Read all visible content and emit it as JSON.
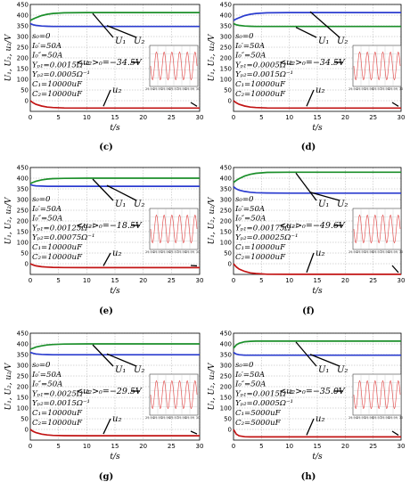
{
  "x_axis_label": "t/s",
  "y_axis_label": "U₁, U₂, u₂/V",
  "x_ticks": [
    "0",
    "5",
    "10",
    "15",
    "20",
    "25",
    "30"
  ],
  "y_ticks": [
    "0",
    "50",
    "100",
    "150",
    "200",
    "250",
    "300",
    "350",
    "400",
    "450"
  ],
  "u1_label": "U₁",
  "u2_label": "U₂",
  "u2_small_label": "u₂",
  "colors": {
    "u1": "#1b8f2a",
    "u2": "#2b3ccf",
    "u2_inst": "#c21414",
    "inset_wave": "#e04040"
  },
  "inset_ticks": [
    "29.94",
    "29.95",
    "29.96",
    "29.97",
    "29.98",
    "29.99",
    "30"
  ],
  "chart_data": [
    {
      "type": "line",
      "caption": "(c)",
      "params": [
        "s₀=0",
        "I₀′=50A",
        "I₀″=50A",
        "Yₚ₁=0.0015Ω⁻¹",
        "Yₚ₂=0.0005Ω⁻¹",
        "C₁=10000uF",
        "C₂=10000uF"
      ],
      "annotation": "<u₂>₀=−34.5V",
      "xlim": [
        0,
        30
      ],
      "ylim": [
        -50,
        450
      ],
      "series": [
        {
          "name": "U₁",
          "x": [
            0,
            0.5,
            1,
            2,
            3,
            4,
            6,
            10,
            15,
            20,
            25,
            30
          ],
          "y": [
            375,
            382,
            388,
            398,
            404,
            408,
            411,
            412,
            412,
            412,
            412,
            412
          ]
        },
        {
          "name": "U₂",
          "x": [
            0,
            0.5,
            1,
            2,
            3,
            4,
            6,
            10,
            15,
            20,
            25,
            30
          ],
          "y": [
            360,
            355,
            352,
            349,
            348,
            347,
            347,
            347,
            347,
            347,
            347,
            347
          ]
        },
        {
          "name": "u₂",
          "x": [
            0,
            0.5,
            1,
            2,
            3,
            4,
            6,
            10,
            15,
            20,
            25,
            30
          ],
          "y": [
            0,
            -10,
            -17,
            -25,
            -30,
            -32,
            -34,
            -34.5,
            -34.5,
            -34.5,
            -34.5,
            -34.5
          ]
        }
      ]
    },
    {
      "type": "line",
      "caption": "(d)",
      "params": [
        "s₀=0",
        "I₀′=50A",
        "I₀″=50A",
        "Yₚ₁=0.0005Ω⁻¹",
        "Yₚ₂=0.0015Ω⁻¹",
        "C₁=10000uF",
        "C₂=10000uF"
      ],
      "annotation": "<u₂>₀=−34.5V",
      "xlim": [
        0,
        30
      ],
      "ylim": [
        -50,
        450
      ],
      "series": [
        {
          "name": "U₁",
          "x": [
            0,
            0.5,
            1,
            2,
            3,
            4,
            6,
            10,
            15,
            20,
            25,
            30
          ],
          "y": [
            360,
            355,
            352,
            349,
            348,
            347,
            347,
            347,
            347,
            347,
            347,
            347
          ]
        },
        {
          "name": "U₂",
          "x": [
            0,
            0.5,
            1,
            2,
            3,
            4,
            6,
            10,
            15,
            20,
            25,
            30
          ],
          "y": [
            375,
            382,
            388,
            398,
            404,
            408,
            411,
            412,
            412,
            412,
            412,
            412
          ]
        },
        {
          "name": "u₂",
          "x": [
            0,
            0.5,
            1,
            2,
            3,
            4,
            6,
            10,
            15,
            20,
            25,
            30
          ],
          "y": [
            0,
            -10,
            -17,
            -25,
            -30,
            -32,
            -34,
            -34.5,
            -34.5,
            -34.5,
            -34.5,
            -34.5
          ]
        }
      ]
    },
    {
      "type": "line",
      "caption": "(e)",
      "params": [
        "s₀=0",
        "I₀′=50A",
        "I₀″=50A",
        "Yₚ₁=0.00125Ω⁻¹",
        "Yₚ₂=0.00075Ω⁻¹",
        "C₁=10000uF",
        "C₂=10000uF"
      ],
      "annotation": "<u₂>₀=−18.5V",
      "xlim": [
        0,
        30
      ],
      "ylim": [
        -50,
        450
      ],
      "series": [
        {
          "name": "U₁",
          "x": [
            0,
            0.5,
            1,
            2,
            3,
            4,
            6,
            10,
            15,
            20,
            25,
            30
          ],
          "y": [
            375,
            381,
            386,
            392,
            396,
            398,
            399,
            400,
            400,
            400,
            400,
            400
          ]
        },
        {
          "name": "U₂",
          "x": [
            0,
            0.5,
            1,
            2,
            3,
            4,
            6,
            10,
            15,
            20,
            25,
            30
          ],
          "y": [
            370,
            366,
            364,
            363,
            362,
            362,
            362,
            362,
            362,
            362,
            362,
            362
          ]
        },
        {
          "name": "u₂",
          "x": [
            0,
            0.5,
            1,
            2,
            3,
            4,
            6,
            10,
            15,
            20,
            25,
            30
          ],
          "y": [
            0,
            -6,
            -10,
            -14,
            -16,
            -17,
            -18,
            -18.5,
            -18.5,
            -18.5,
            -18.5,
            -18.5
          ]
        }
      ]
    },
    {
      "type": "line",
      "caption": "(f)",
      "params": [
        "s₀=0",
        "I₀′=50A",
        "I₀″=50A",
        "Yₚ₁=0.00175Ω⁻¹",
        "Yₚ₂=0.00025Ω⁻¹",
        "C₁=10000uF",
        "C₂=10000uF"
      ],
      "annotation": "<u₂>₀=−49.6V",
      "xlim": [
        0,
        30
      ],
      "ylim": [
        -50,
        450
      ],
      "series": [
        {
          "name": "U₁",
          "x": [
            0,
            0.5,
            1,
            2,
            3,
            4,
            6,
            10,
            15,
            20,
            25,
            30
          ],
          "y": [
            380,
            390,
            398,
            410,
            418,
            423,
            427,
            428,
            428,
            428,
            428,
            428
          ]
        },
        {
          "name": "U₂",
          "x": [
            0,
            0.5,
            1,
            2,
            3,
            4,
            6,
            10,
            15,
            20,
            25,
            30
          ],
          "y": [
            360,
            350,
            344,
            338,
            334,
            332,
            331,
            330,
            330,
            330,
            330,
            330
          ]
        },
        {
          "name": "u₂",
          "x": [
            0,
            0.5,
            1,
            2,
            3,
            4,
            6,
            10,
            15,
            20,
            25,
            30
          ],
          "y": [
            0,
            -15,
            -25,
            -36,
            -43,
            -46,
            -49,
            -49.6,
            -49.6,
            -49.6,
            -49.6,
            -49.6
          ]
        }
      ]
    },
    {
      "type": "line",
      "caption": "(g)",
      "params": [
        "s₀=0",
        "I₀′=50A",
        "I₀″=50A",
        "Yₚ₁=0.0025Ω⁻¹",
        "Yₚ₂=0.0015Ω⁻¹",
        "C₁=10000uF",
        "C₂=10000uF"
      ],
      "annotation": "<u₂>₀=−29.5V",
      "xlim": [
        0,
        30
      ],
      "ylim": [
        -50,
        450
      ],
      "series": [
        {
          "name": "U₁",
          "x": [
            0,
            0.5,
            1,
            2,
            3,
            4,
            6,
            10,
            15,
            20,
            25,
            30
          ],
          "y": [
            375,
            380,
            385,
            391,
            395,
            397,
            399,
            400,
            400,
            400,
            400,
            400
          ]
        },
        {
          "name": "U₂",
          "x": [
            0,
            0.5,
            1,
            2,
            3,
            4,
            6,
            10,
            15,
            20,
            25,
            30
          ],
          "y": [
            360,
            356,
            353,
            351,
            350,
            349,
            349,
            349,
            349,
            349,
            349,
            349
          ]
        },
        {
          "name": "u₂",
          "x": [
            0,
            0.5,
            1,
            2,
            3,
            4,
            6,
            10,
            15,
            20,
            25,
            30
          ],
          "y": [
            0,
            -9,
            -15,
            -22,
            -26,
            -28,
            -29,
            -29.5,
            -29.5,
            -29.5,
            -29.5,
            -29.5
          ]
        }
      ]
    },
    {
      "type": "line",
      "caption": "(h)",
      "params": [
        "s₀=0",
        "I₀′=50A",
        "I₀″=50A",
        "Yₚ₁=0.0015Ω⁻¹",
        "Yₚ₂=0.0005Ω⁻¹",
        "C₁=5000uF",
        "C₂=5000uF"
      ],
      "annotation": "<u₂>₀=−35.0V",
      "xlim": [
        0,
        30
      ],
      "ylim": [
        -50,
        450
      ],
      "series": [
        {
          "name": "U₁",
          "x": [
            0,
            0.5,
            1,
            2,
            3,
            4,
            6,
            10,
            15,
            20,
            25,
            30
          ],
          "y": [
            380,
            395,
            403,
            410,
            412,
            413,
            413,
            413,
            413,
            413,
            413,
            413
          ]
        },
        {
          "name": "U₂",
          "x": [
            0,
            0.5,
            1,
            2,
            3,
            4,
            6,
            10,
            15,
            20,
            25,
            30
          ],
          "y": [
            360,
            352,
            349,
            347,
            347,
            347,
            347,
            347,
            347,
            347,
            347,
            347
          ]
        },
        {
          "name": "u₂",
          "x": [
            0,
            0.5,
            1,
            2,
            3,
            4,
            6,
            10,
            15,
            20,
            25,
            30
          ],
          "y": [
            0,
            -22,
            -30,
            -34,
            -35,
            -35,
            -35,
            -35,
            -35,
            -35,
            -35,
            -35
          ]
        }
      ]
    }
  ]
}
